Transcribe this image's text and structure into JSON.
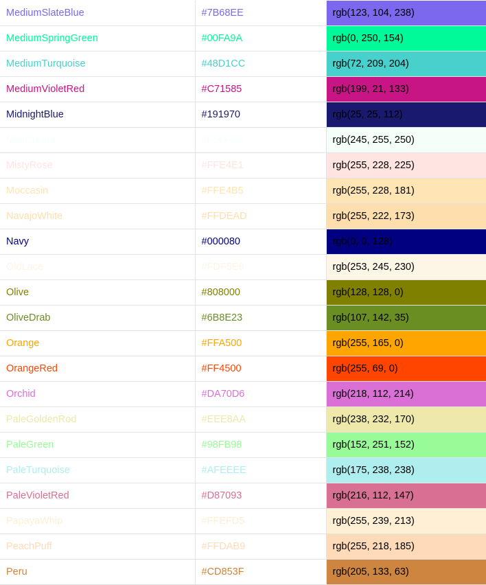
{
  "rows": [
    {
      "name": "MediumSlateBlue",
      "hex": "#7B68EE",
      "rgb": "rgb(123, 104, 238)"
    },
    {
      "name": "MediumSpringGreen",
      "hex": "#00FA9A",
      "rgb": "rgb(0, 250, 154)"
    },
    {
      "name": "MediumTurquoise",
      "hex": "#48D1CC",
      "rgb": "rgb(72, 209, 204)"
    },
    {
      "name": "MediumVioletRed",
      "hex": "#C71585",
      "rgb": "rgb(199, 21, 133)"
    },
    {
      "name": "MidnightBlue",
      "hex": "#191970",
      "rgb": "rgb(25, 25, 112)"
    },
    {
      "name": "MintCream",
      "hex": "#F5FFFA",
      "rgb": "rgb(245, 255, 250)"
    },
    {
      "name": "MistyRose",
      "hex": "#FFE4E1",
      "rgb": "rgb(255, 228, 225)"
    },
    {
      "name": "Moccasin",
      "hex": "#FFE4B5",
      "rgb": "rgb(255, 228, 181)"
    },
    {
      "name": "NavajoWhite",
      "hex": "#FFDEAD",
      "rgb": "rgb(255, 222, 173)"
    },
    {
      "name": "Navy",
      "hex": "#000080",
      "rgb": "rgb(0, 0, 128)"
    },
    {
      "name": "OldLace",
      "hex": "#FDF5E6",
      "rgb": "rgb(253, 245, 230)"
    },
    {
      "name": "Olive",
      "hex": "#808000",
      "rgb": "rgb(128, 128, 0)"
    },
    {
      "name": "OliveDrab",
      "hex": "#6B8E23",
      "rgb": "rgb(107, 142, 35)"
    },
    {
      "name": "Orange",
      "hex": "#FFA500",
      "rgb": "rgb(255, 165, 0)"
    },
    {
      "name": "OrangeRed",
      "hex": "#FF4500",
      "rgb": "rgb(255, 69, 0)"
    },
    {
      "name": "Orchid",
      "hex": "#DA70D6",
      "rgb": "rgb(218, 112, 214)"
    },
    {
      "name": "PaleGoldenRod",
      "hex": "#EEE8AA",
      "rgb": "rgb(238, 232, 170)"
    },
    {
      "name": "PaleGreen",
      "hex": "#98FB98",
      "rgb": "rgb(152, 251, 152)"
    },
    {
      "name": "PaleTurquoise",
      "hex": "#AFEEEE",
      "rgb": "rgb(175, 238, 238)"
    },
    {
      "name": "PaleVioletRed",
      "hex": "#D87093",
      "rgb": "rgb(216, 112, 147)"
    },
    {
      "name": "PapayaWhip",
      "hex": "#FFEFD5",
      "rgb": "rgb(255, 239, 213)"
    },
    {
      "name": "PeachPuff",
      "hex": "#FFDAB9",
      "rgb": "rgb(255, 218, 185)"
    },
    {
      "name": "Peru",
      "hex": "#CD853F",
      "rgb": "rgb(205, 133, 63)"
    }
  ]
}
